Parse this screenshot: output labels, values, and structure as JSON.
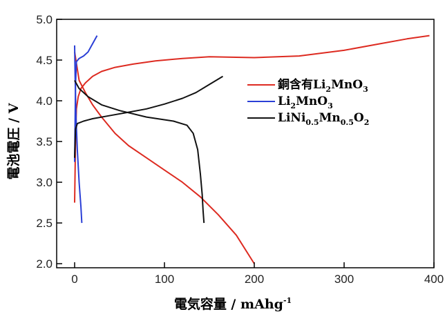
{
  "chart_data": {
    "type": "line",
    "xlabel": "電気容量 / mAhg",
    "xlabel_sup": "-1",
    "ylabel": "電池電圧 / V",
    "xlim": [
      -20,
      400
    ],
    "ylim": [
      1.95,
      5.0
    ],
    "x_ticks": [
      0,
      100,
      200,
      300,
      400
    ],
    "x_tick_labels": [
      "0",
      "100",
      "200",
      "300",
      "400"
    ],
    "y_ticks": [
      2.0,
      2.5,
      3.0,
      3.5,
      4.0,
      4.5,
      5.0
    ],
    "y_tick_labels": [
      "2.0",
      "2.5",
      "3.0",
      "3.5",
      "4.0",
      "4.5",
      "5.0"
    ],
    "grid": false,
    "legend_position": "center-right",
    "series": [
      {
        "legend_key": "cu",
        "color": "#dd2a20",
        "segments": [
          {
            "x": [
              0,
              1,
              2,
              4,
              7,
              12,
              20,
              30,
              45,
              65,
              90,
              120,
              150,
              200,
              250,
              300,
              340,
              370,
              395
            ],
            "y": [
              2.75,
              3.5,
              3.9,
              4.05,
              4.15,
              4.22,
              4.3,
              4.36,
              4.41,
              4.45,
              4.49,
              4.52,
              4.54,
              4.53,
              4.55,
              4.62,
              4.7,
              4.76,
              4.8
            ]
          },
          {
            "x": [
              0,
              5,
              12,
              20,
              30,
              45,
              60,
              80,
              100,
              120,
              140,
              160,
              180,
              200
            ],
            "y": [
              4.6,
              4.25,
              4.1,
              3.95,
              3.8,
              3.6,
              3.45,
              3.3,
              3.15,
              3.0,
              2.82,
              2.6,
              2.35,
              2.0
            ]
          }
        ]
      },
      {
        "legend_key": "li2",
        "color": "#2a3fd6",
        "segments": [
          {
            "x": [
              0,
              1,
              2,
              5,
              10,
              15,
              20,
              25
            ],
            "y": [
              3.25,
              4.2,
              4.48,
              4.52,
              4.55,
              4.6,
              4.7,
              4.8
            ]
          },
          {
            "x": [
              0,
              0.5,
              1.5,
              3,
              5,
              7,
              8
            ],
            "y": [
              4.68,
              4.3,
              3.8,
              3.4,
              3.0,
              2.7,
              2.5
            ]
          }
        ]
      },
      {
        "legend_key": "lini",
        "color": "#111111",
        "segments": [
          {
            "x": [
              0,
              1,
              3,
              10,
              20,
              40,
              60,
              80,
              100,
              120,
              135,
              150,
              165
            ],
            "y": [
              3.3,
              3.65,
              3.72,
              3.75,
              3.78,
              3.82,
              3.86,
              3.9,
              3.96,
              4.03,
              4.1,
              4.2,
              4.3
            ]
          },
          {
            "x": [
              0,
              5,
              15,
              30,
              50,
              80,
              110,
              125,
              132,
              137,
              140,
              142,
              143,
              144
            ],
            "y": [
              4.25,
              4.15,
              4.05,
              3.95,
              3.88,
              3.8,
              3.75,
              3.7,
              3.6,
              3.4,
              3.1,
              2.85,
              2.65,
              2.5
            ]
          }
        ]
      }
    ],
    "legend": [
      {
        "key": "cu",
        "color": "#dd2a20",
        "parts": [
          {
            "t": "銅含有Li",
            "s": ""
          },
          {
            "t": "2",
            "s": "sub"
          },
          {
            "t": "MnO",
            "s": ""
          },
          {
            "t": "3",
            "s": "sub"
          }
        ]
      },
      {
        "key": "li2",
        "color": "#2a3fd6",
        "parts": [
          {
            "t": "Li",
            "s": ""
          },
          {
            "t": "2",
            "s": "sub"
          },
          {
            "t": "MnO",
            "s": ""
          },
          {
            "t": "3",
            "s": "sub"
          }
        ]
      },
      {
        "key": "lini",
        "color": "#111111",
        "parts": [
          {
            "t": "LiNi",
            "s": ""
          },
          {
            "t": "0.5",
            "s": "sub"
          },
          {
            "t": "Mn",
            "s": ""
          },
          {
            "t": "0.5",
            "s": "sub"
          },
          {
            "t": "O",
            "s": ""
          },
          {
            "t": "2",
            "s": "sub"
          }
        ]
      }
    ]
  }
}
